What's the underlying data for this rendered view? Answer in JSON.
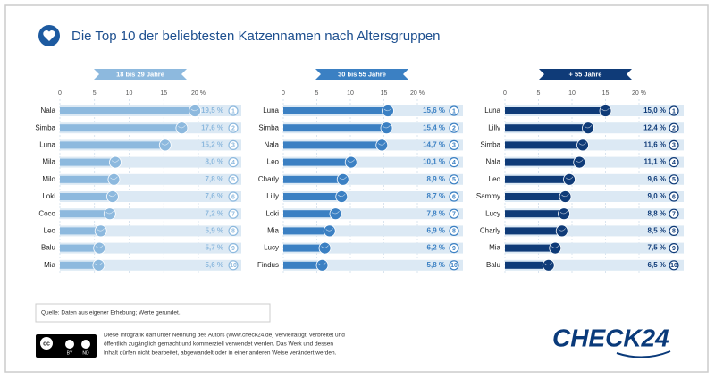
{
  "title": "Die Top 10 der beliebtesten Katzennamen nach Altersgruppen",
  "chart_data": [
    {
      "type": "bar",
      "orientation": "horizontal",
      "title": "18 bis 29 Jahre",
      "categories": [
        "Nala",
        "Simba",
        "Luna",
        "Mila",
        "Milo",
        "Loki",
        "Coco",
        "Leo",
        "Balu",
        "Mia"
      ],
      "values": [
        19.5,
        17.6,
        15.2,
        8.0,
        7.8,
        7.6,
        7.2,
        5.9,
        5.7,
        5.6
      ],
      "value_labels": [
        "19,5 %",
        "17,6 %",
        "15,2 %",
        "8,0 %",
        "7,8 %",
        "7,6 %",
        "7,2 %",
        "5,9 %",
        "5,7 %",
        "5,6 %"
      ],
      "ranks": [
        1,
        2,
        3,
        4,
        5,
        6,
        7,
        8,
        9,
        10
      ],
      "color": "#8db9de",
      "track_color": "#dce9f4",
      "xlim": [
        0,
        20
      ],
      "xticks": [
        0,
        5,
        10,
        15,
        {
          "value": 20,
          "label": "20 %"
        }
      ],
      "grid": true
    },
    {
      "type": "bar",
      "orientation": "horizontal",
      "title": "30 bis 55 Jahre",
      "categories": [
        "Luna",
        "Simba",
        "Nala",
        "Leo",
        "Charly",
        "Lilly",
        "Loki",
        "Mia",
        "Lucy",
        "Findus"
      ],
      "values": [
        15.6,
        15.4,
        14.7,
        10.1,
        8.9,
        8.7,
        7.8,
        6.9,
        6.2,
        5.8
      ],
      "value_labels": [
        "15,6 %",
        "15,4 %",
        "14,7 %",
        "10,1 %",
        "8,9 %",
        "8,7 %",
        "7,8 %",
        "6,9 %",
        "6,2 %",
        "5,8 %"
      ],
      "ranks": [
        1,
        2,
        3,
        4,
        5,
        6,
        7,
        8,
        9,
        10
      ],
      "color": "#3b80c3",
      "track_color": "#dce9f4",
      "xlim": [
        0,
        20
      ],
      "xticks": [
        0,
        5,
        10,
        15,
        {
          "value": 20,
          "label": "20 %"
        }
      ],
      "grid": true
    },
    {
      "type": "bar",
      "orientation": "horizontal",
      "title": "+ 55 Jahre",
      "categories": [
        "Luna",
        "Lilly",
        "Simba",
        "Nala",
        "Leo",
        "Sammy",
        "Lucy",
        "Charly",
        "Mia",
        "Balu"
      ],
      "values": [
        15.0,
        12.4,
        11.6,
        11.1,
        9.6,
        9.0,
        8.8,
        8.5,
        7.5,
        6.5
      ],
      "value_labels": [
        "15,0 %",
        "12,4 %",
        "11,6 %",
        "11,1 %",
        "9,6 %",
        "9,0 %",
        "8,8 %",
        "8,5 %",
        "7,5 %",
        "6,5 %"
      ],
      "ranks": [
        1,
        2,
        3,
        4,
        5,
        6,
        7,
        8,
        9,
        10
      ],
      "color": "#0f3b78",
      "track_color": "#dce9f4",
      "xlim": [
        0,
        20
      ],
      "xticks": [
        0,
        5,
        10,
        15,
        {
          "value": 20,
          "label": "20 %"
        }
      ],
      "grid": true
    }
  ],
  "source": "Quelle: Daten aus eigener Erhebung; Werte gerundet.",
  "license": [
    "Diese Infografik darf unter Nennung des Autors (www.check24.de) vervielfältigt, verbreitet und",
    "öffentlich zugänglich gemacht und kommerziell verwendet werden. Das Werk und dessen",
    "Inhalt dürfen nicht bearbeitet, abgewandelt oder in einer anderen Weise verändert werden."
  ],
  "license_badge": [
    "cc",
    "BY",
    "ND"
  ],
  "logo": "CHECK24"
}
